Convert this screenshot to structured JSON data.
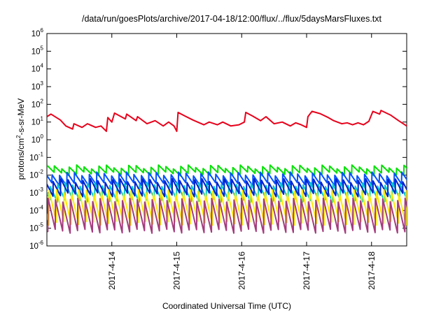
{
  "chart_data": {
    "type": "line",
    "title": "/data/run/goesPlots/archive/2017-04-18/12:00/flux/../flux/5daysMarsFluxes.txt",
    "xlabel": "Coordinated Universal Time (UTC)",
    "ylabel": {
      "pre": "protons/cm",
      "sup": "2",
      "post": "-s-sr-MeV"
    },
    "x_range": [
      "2017-04-13T00:00",
      "2017-04-18T13:00"
    ],
    "x_ticks": [
      {
        "value": "2017-04-14T00:00",
        "label": "2017-4-14"
      },
      {
        "value": "2017-04-15T00:00",
        "label": "2017-4-15"
      },
      {
        "value": "2017-04-16T00:00",
        "label": "2017-4-16"
      },
      {
        "value": "2017-04-17T00:00",
        "label": "2017-4-17"
      },
      {
        "value": "2017-04-18T00:00",
        "label": "2017-4-18"
      }
    ],
    "y_scale": "log",
    "ylim": [
      1e-06,
      1000000.0
    ],
    "y_ticks": [
      {
        "base": "10",
        "exp": "6"
      },
      {
        "base": "10",
        "exp": "5"
      },
      {
        "base": "10",
        "exp": "4"
      },
      {
        "base": "10",
        "exp": "3"
      },
      {
        "base": "10",
        "exp": "2"
      },
      {
        "base": "10",
        "exp": "1"
      },
      {
        "base": "10",
        "exp": "0"
      },
      {
        "base": "10",
        "exp": "-1"
      },
      {
        "base": "10",
        "exp": "-2"
      },
      {
        "base": "10",
        "exp": "-3"
      },
      {
        "base": "10",
        "exp": "-4"
      },
      {
        "base": "10",
        "exp": "-5"
      },
      {
        "base": "10",
        "exp": "-6"
      }
    ],
    "grid": false,
    "legend": "none",
    "series": [
      {
        "color": "#e8001a",
        "kind": "decay",
        "points": [
          [
            "2017-04-13T00:00",
            20
          ],
          [
            "2017-04-13T01:30",
            28
          ],
          [
            "2017-04-13T05:00",
            13
          ],
          [
            "2017-04-13T07:00",
            6
          ],
          [
            "2017-04-13T09:30",
            4
          ],
          [
            "2017-04-13T10:00",
            8
          ],
          [
            "2017-04-13T13:00",
            5
          ],
          [
            "2017-04-13T15:00",
            8
          ],
          [
            "2017-04-13T18:00",
            5
          ],
          [
            "2017-04-13T20:00",
            6
          ],
          [
            "2017-04-13T22:00",
            3
          ],
          [
            "2017-04-13T22:30",
            18
          ],
          [
            "2017-04-14T00:00",
            10
          ],
          [
            "2017-04-14T01:00",
            32
          ],
          [
            "2017-04-14T05:00",
            15
          ],
          [
            "2017-04-14T05:30",
            28
          ],
          [
            "2017-04-14T09:00",
            12
          ],
          [
            "2017-04-14T09:30",
            20
          ],
          [
            "2017-04-14T13:00",
            8
          ],
          [
            "2017-04-14T16:00",
            12
          ],
          [
            "2017-04-14T19:00",
            6
          ],
          [
            "2017-04-14T21:00",
            10
          ],
          [
            "2017-04-14T23:00",
            6
          ],
          [
            "2017-04-15T00:00",
            3
          ],
          [
            "2017-04-15T00:30",
            35
          ],
          [
            "2017-04-15T03:00",
            22
          ],
          [
            "2017-04-15T06:00",
            13
          ],
          [
            "2017-04-15T10:00",
            7
          ],
          [
            "2017-04-15T12:00",
            10
          ],
          [
            "2017-04-15T15:00",
            7
          ],
          [
            "2017-04-15T17:00",
            10
          ],
          [
            "2017-04-15T20:00",
            6
          ],
          [
            "2017-04-15T23:00",
            7
          ],
          [
            "2017-04-16T01:00",
            10
          ],
          [
            "2017-04-16T01:30",
            35
          ],
          [
            "2017-04-16T04:00",
            22
          ],
          [
            "2017-04-16T07:00",
            12
          ],
          [
            "2017-04-16T09:00",
            20
          ],
          [
            "2017-04-16T12:00",
            8
          ],
          [
            "2017-04-16T15:00",
            10
          ],
          [
            "2017-04-16T18:00",
            6
          ],
          [
            "2017-04-16T20:00",
            9
          ],
          [
            "2017-04-16T22:00",
            7
          ],
          [
            "2017-04-17T00:00",
            5
          ],
          [
            "2017-04-17T00:30",
            20
          ],
          [
            "2017-04-17T02:00",
            40
          ],
          [
            "2017-04-17T05:00",
            30
          ],
          [
            "2017-04-17T08:00",
            18
          ],
          [
            "2017-04-17T10:00",
            12
          ],
          [
            "2017-04-17T13:00",
            8
          ],
          [
            "2017-04-17T15:00",
            9
          ],
          [
            "2017-04-17T17:00",
            7
          ],
          [
            "2017-04-17T19:00",
            9
          ],
          [
            "2017-04-17T21:00",
            7
          ],
          [
            "2017-04-17T23:00",
            11
          ],
          [
            "2017-04-18T00:30",
            40
          ],
          [
            "2017-04-18T03:00",
            28
          ],
          [
            "2017-04-18T03:30",
            45
          ],
          [
            "2017-04-18T07:00",
            25
          ],
          [
            "2017-04-18T10:00",
            12
          ],
          [
            "2017-04-18T13:00",
            6
          ]
        ]
      },
      {
        "color": "#00e000",
        "kind": "sawtooth",
        "peak": 0.03,
        "trough": 0.012,
        "phase": 0.0
      },
      {
        "color": "#0050ff",
        "kind": "sawtooth",
        "peak": 0.012,
        "trough": 0.003,
        "phase": 0.3
      },
      {
        "color": "#00ccc8",
        "kind": "sawtooth",
        "peak": 0.003,
        "trough": 0.0004,
        "phase": 0.55
      },
      {
        "color": "#0022cc",
        "kind": "sawtooth",
        "peak": 0.005,
        "trough": 0.0008,
        "phase": 0.15
      },
      {
        "color": "#ffea00",
        "kind": "sawtooth",
        "peak": 0.0012,
        "trough": 2e-05,
        "phase": 0.7
      },
      {
        "color": "#a53b7e",
        "kind": "sawtooth",
        "peak": 0.0004,
        "trough": 7e-06,
        "phase": 0.85
      }
    ]
  }
}
